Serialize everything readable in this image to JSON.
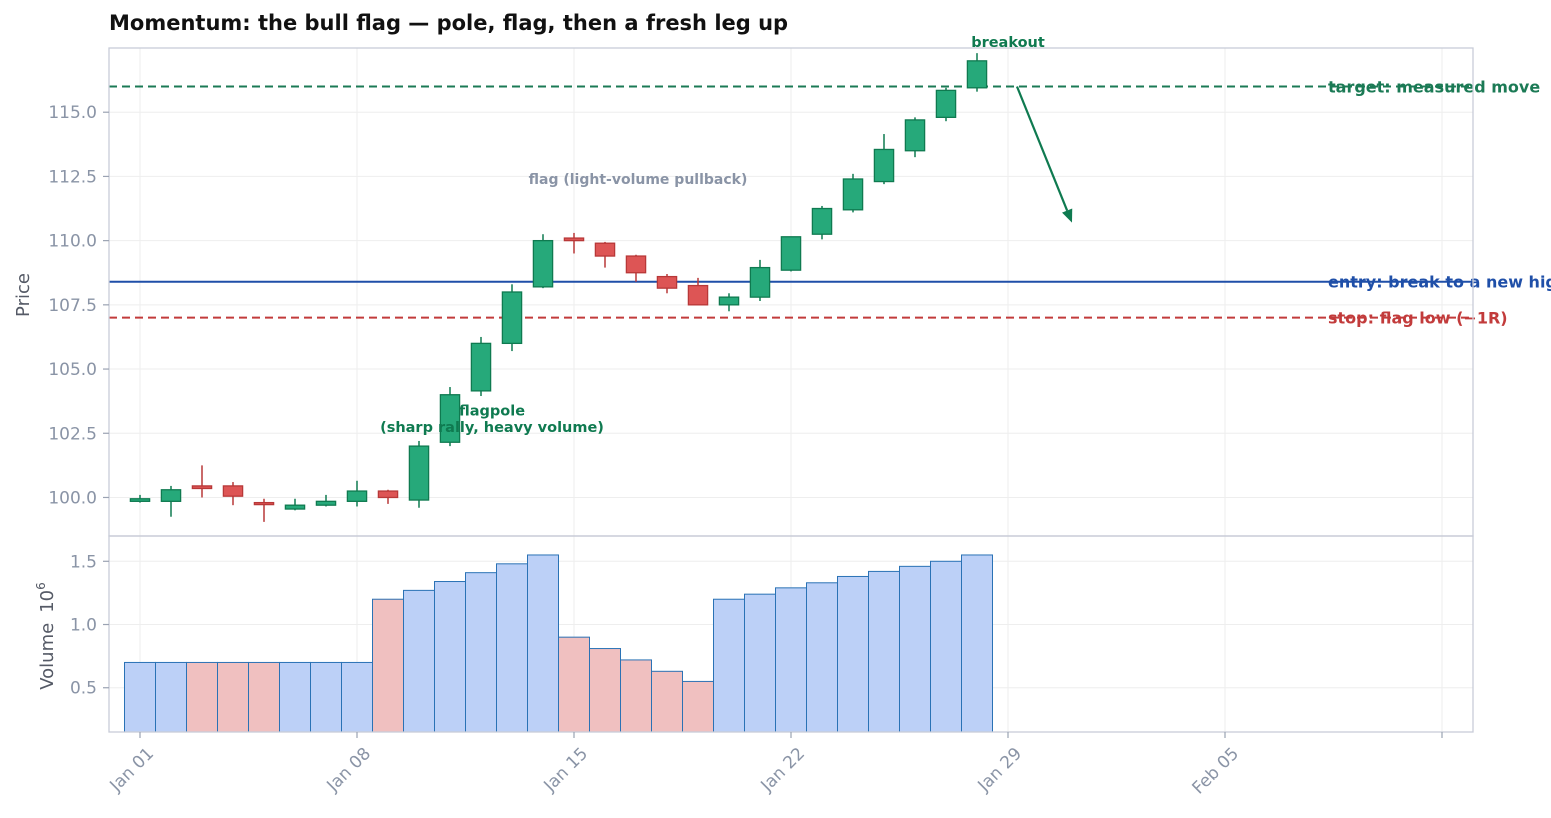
{
  "chart_data": {
    "type": "candlestick",
    "title": "Momentum: the bull flag — pole, flag, then a fresh leg up",
    "price_panel": {
      "ylabel": "Price",
      "ylim": [
        98.5,
        117.5
      ],
      "yticks": [
        100.0,
        102.5,
        105.0,
        107.5,
        110.0,
        112.5,
        115.0
      ],
      "ytick_labels": [
        "100.0",
        "102.5",
        "105.0",
        "107.5",
        "110.0",
        "112.5",
        "115.0"
      ],
      "grid": true
    },
    "volume_panel": {
      "ylabel": "Volume",
      "ylabel_exponent": "10",
      "ylabel_exponent_power": "6",
      "ylim": [
        0.15,
        1.7
      ],
      "yticks": [
        0.5,
        1.0,
        1.5
      ],
      "ytick_labels": [
        "0.5",
        "1.0",
        "1.5"
      ],
      "grid": true
    },
    "x_axis": {
      "range": [
        "2023-12-31",
        "2024-02-13"
      ],
      "ticks": [
        "2024-01-01",
        "2024-01-08",
        "2024-01-15",
        "2024-01-22",
        "2024-01-29",
        "2024-02-05",
        "2024-02-12"
      ],
      "tick_labels": [
        "Jan 01",
        "Jan 08",
        "Jan 15",
        "Jan 22",
        "Jan 29",
        "Feb 05",
        ""
      ]
    },
    "candles": [
      {
        "date": "2024-01-01",
        "open": 99.85,
        "high": 100.1,
        "low": 99.8,
        "close": 99.95
      },
      {
        "date": "2024-01-02",
        "open": 99.85,
        "high": 100.45,
        "low": 99.25,
        "close": 100.3
      },
      {
        "date": "2024-01-03",
        "open": 100.45,
        "high": 101.25,
        "low": 100.0,
        "close": 100.35
      },
      {
        "date": "2024-01-04",
        "open": 100.45,
        "high": 100.6,
        "low": 99.7,
        "close": 100.05
      },
      {
        "date": "2024-01-05",
        "open": 99.8,
        "high": 99.95,
        "low": 99.05,
        "close": 99.75
      },
      {
        "date": "2024-01-06",
        "open": 99.55,
        "high": 99.95,
        "low": 99.5,
        "close": 99.7
      },
      {
        "date": "2024-01-07",
        "open": 99.7,
        "high": 100.1,
        "low": 99.65,
        "close": 99.85
      },
      {
        "date": "2024-01-08",
        "open": 99.85,
        "high": 100.65,
        "low": 99.65,
        "close": 100.25
      },
      {
        "date": "2024-01-09",
        "open": 100.25,
        "high": 100.3,
        "low": 99.75,
        "close": 100.0
      },
      {
        "date": "2024-01-10",
        "open": 99.9,
        "high": 102.2,
        "low": 99.6,
        "close": 102.0
      },
      {
        "date": "2024-01-11",
        "open": 102.15,
        "high": 104.3,
        "low": 102.0,
        "close": 104.0
      },
      {
        "date": "2024-01-12",
        "open": 104.15,
        "high": 106.25,
        "low": 103.95,
        "close": 106.0
      },
      {
        "date": "2024-01-13",
        "open": 106.0,
        "high": 108.3,
        "low": 105.7,
        "close": 108.0
      },
      {
        "date": "2024-01-14",
        "open": 108.2,
        "high": 110.25,
        "low": 108.15,
        "close": 110.0
      },
      {
        "date": "2024-01-15",
        "open": 110.1,
        "high": 110.3,
        "low": 109.5,
        "close": 110.0
      },
      {
        "date": "2024-01-16",
        "open": 109.9,
        "high": 109.95,
        "low": 108.95,
        "close": 109.4
      },
      {
        "date": "2024-01-17",
        "open": 109.4,
        "high": 109.45,
        "low": 108.4,
        "close": 108.75
      },
      {
        "date": "2024-01-18",
        "open": 108.6,
        "high": 108.7,
        "low": 107.95,
        "close": 108.15
      },
      {
        "date": "2024-01-19",
        "open": 108.25,
        "high": 108.55,
        "low": 107.5,
        "close": 107.5
      },
      {
        "date": "2024-01-20",
        "open": 107.5,
        "high": 107.95,
        "low": 107.25,
        "close": 107.8
      },
      {
        "date": "2024-01-21",
        "open": 107.8,
        "high": 109.25,
        "low": 107.65,
        "close": 108.95
      },
      {
        "date": "2024-01-22",
        "open": 108.85,
        "high": 110.15,
        "low": 108.8,
        "close": 110.15
      },
      {
        "date": "2024-01-23",
        "open": 110.25,
        "high": 111.35,
        "low": 110.05,
        "close": 111.25
      },
      {
        "date": "2024-01-24",
        "open": 111.2,
        "high": 112.6,
        "low": 111.1,
        "close": 112.4
      },
      {
        "date": "2024-01-25",
        "open": 112.3,
        "high": 114.15,
        "low": 112.2,
        "close": 113.55
      },
      {
        "date": "2024-01-26",
        "open": 113.5,
        "high": 114.8,
        "low": 113.25,
        "close": 114.7
      },
      {
        "date": "2024-01-27",
        "open": 114.8,
        "high": 115.95,
        "low": 114.65,
        "close": 115.85
      },
      {
        "date": "2024-01-28",
        "open": 115.95,
        "high": 117.3,
        "low": 115.8,
        "close": 117.0
      }
    ],
    "volume": [
      0.7,
      0.7,
      0.7,
      0.7,
      0.7,
      0.7,
      0.7,
      0.7,
      1.2,
      1.27,
      1.34,
      1.41,
      1.48,
      1.55,
      0.9,
      0.81,
      0.72,
      0.63,
      0.55,
      1.2,
      1.24,
      1.29,
      1.33,
      1.38,
      1.42,
      1.46,
      1.5,
      1.55
    ],
    "levels": [
      {
        "name": "target",
        "value": 116.0,
        "label": "target: measured move",
        "style": "dashed",
        "color": "#1b7a55"
      },
      {
        "name": "entry",
        "value": 108.4,
        "label": "entry: break to a new high",
        "style": "solid",
        "color": "#1f4fa8"
      },
      {
        "name": "stop",
        "value": 107.0,
        "label": "stop: flag low  (−1R)",
        "style": "dashed",
        "color": "#c23b3b"
      }
    ],
    "annotations": {
      "breakout": "breakout",
      "flag": "flag (light-volume pullback)",
      "flagpole_line1": "flagpole",
      "flagpole_line2": "(sharp rally, heavy volume)"
    },
    "colors": {
      "up": "#26a97a",
      "up_edge": "#0f7a50",
      "down": "#dd5555",
      "down_edge": "#b83838",
      "vol_up": "#bcd0f7",
      "vol_down": "#f0c0c0",
      "vol_edge": "#2a72b5",
      "grid": "#eeeeee",
      "frame": "#c8ccd8"
    }
  }
}
